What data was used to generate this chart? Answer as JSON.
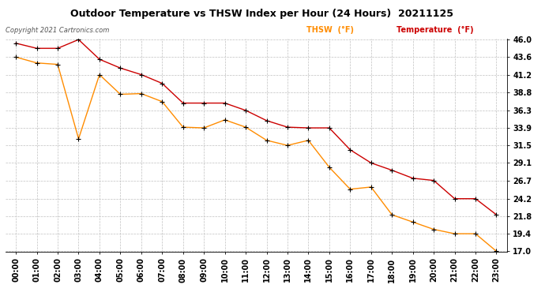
{
  "title": "Outdoor Temperature vs THSW Index per Hour (24 Hours)  20211125",
  "copyright": "Copyright 2021 Cartronics.com",
  "legend_thsw": "THSW  (°F)",
  "legend_temp": "Temperature  (°F)",
  "hours": [
    "00:00",
    "01:00",
    "02:00",
    "03:00",
    "04:00",
    "05:00",
    "06:00",
    "07:00",
    "08:00",
    "09:00",
    "10:00",
    "11:00",
    "12:00",
    "13:00",
    "14:00",
    "15:00",
    "16:00",
    "17:00",
    "18:00",
    "19:00",
    "20:00",
    "21:00",
    "22:00",
    "23:00"
  ],
  "temperature": [
    45.5,
    44.8,
    44.8,
    46.0,
    43.3,
    42.1,
    41.2,
    40.0,
    37.3,
    37.3,
    37.3,
    36.3,
    34.9,
    34.0,
    33.9,
    33.9,
    30.9,
    29.1,
    28.1,
    27.0,
    26.7,
    24.2,
    24.2,
    22.0
  ],
  "thsw": [
    43.6,
    42.8,
    42.6,
    32.4,
    41.2,
    38.5,
    38.6,
    37.5,
    34.0,
    33.9,
    35.0,
    34.0,
    32.2,
    31.5,
    32.2,
    28.5,
    25.5,
    25.8,
    22.0,
    21.0,
    20.0,
    19.4,
    19.4,
    17.0
  ],
  "ylim_min": 17.0,
  "ylim_max": 46.0,
  "yticks": [
    17.0,
    19.4,
    21.8,
    24.2,
    26.7,
    29.1,
    31.5,
    33.9,
    36.3,
    38.8,
    41.2,
    43.6,
    46.0
  ],
  "temp_color": "#cc0000",
  "thsw_color": "#ff8c00",
  "marker_color": "#000000",
  "bg_color": "#ffffff",
  "grid_color": "#c0c0c0",
  "title_color": "#000000",
  "legend_thsw_color": "#ff8c00",
  "legend_temp_color": "#cc0000",
  "title_fontsize": 9,
  "tick_fontsize": 7,
  "copyright_fontsize": 6,
  "legend_fontsize": 7
}
